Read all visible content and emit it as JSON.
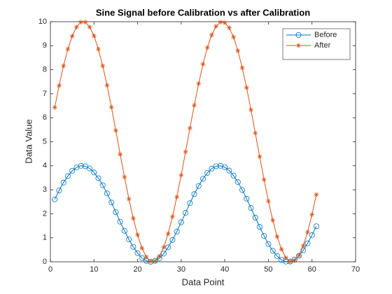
{
  "chart_data": {
    "type": "line",
    "title": "Sine Signal before Calibration vs after Calibration",
    "xlabel": "Data Point",
    "ylabel": "Data Value",
    "x": [
      1,
      2,
      3,
      4,
      5,
      6,
      7,
      8,
      9,
      10,
      11,
      12,
      13,
      14,
      15,
      16,
      17,
      18,
      19,
      20,
      21,
      22,
      23,
      24,
      25,
      26,
      27,
      28,
      29,
      30,
      31,
      32,
      33,
      34,
      35,
      36,
      37,
      38,
      39,
      40,
      41,
      42,
      43,
      44,
      45,
      46,
      47,
      48,
      49,
      50,
      51,
      52,
      53,
      54,
      55,
      56,
      57,
      58,
      59,
      60,
      61
    ],
    "series": [
      {
        "name": "Before",
        "color": "#0072BD",
        "marker": "o",
        "values": [
          2.6,
          2.97,
          3.3,
          3.57,
          3.79,
          3.93,
          4.0,
          3.98,
          3.89,
          3.72,
          3.48,
          3.19,
          2.85,
          2.47,
          2.07,
          1.67,
          1.29,
          0.93,
          0.62,
          0.36,
          0.16,
          0.04,
          0.0,
          0.04,
          0.15,
          0.34,
          0.6,
          0.91,
          1.26,
          1.65,
          2.04,
          2.44,
          2.82,
          3.16,
          3.46,
          3.7,
          3.88,
          3.98,
          4.0,
          3.94,
          3.8,
          3.59,
          3.32,
          2.99,
          2.63,
          2.24,
          1.84,
          1.45,
          1.08,
          0.74,
          0.46,
          0.24,
          0.08,
          0.01,
          0.01,
          0.09,
          0.25,
          0.48,
          0.77,
          1.11,
          1.48
        ]
      },
      {
        "name": "After",
        "color": "#D95319",
        "marker": "*",
        "values": [
          6.43,
          7.34,
          8.16,
          8.86,
          9.4,
          9.78,
          9.98,
          9.98,
          9.78,
          9.41,
          8.86,
          8.16,
          7.35,
          6.44,
          5.47,
          4.48,
          3.53,
          2.62,
          1.81,
          1.12,
          0.57,
          0.2,
          0.02,
          0.03,
          0.23,
          0.61,
          1.17,
          1.88,
          2.7,
          3.61,
          4.58,
          5.57,
          6.52,
          7.42,
          8.23,
          8.92,
          9.45,
          9.81,
          9.98,
          9.96,
          9.75,
          9.36,
          8.79,
          8.08,
          7.25,
          6.33,
          5.36,
          4.38,
          3.42,
          2.53,
          1.73,
          1.05,
          0.52,
          0.17,
          0.01,
          0.05,
          0.26,
          0.67,
          1.24,
          1.97,
          2.8
        ]
      }
    ],
    "xlim": [
      0,
      70
    ],
    "xticks": [
      0,
      10,
      20,
      30,
      40,
      50,
      60,
      70
    ],
    "ylim": [
      0,
      10
    ],
    "yticks": [
      0,
      1,
      2,
      3,
      4,
      5,
      6,
      7,
      8,
      9,
      10
    ],
    "grid": false,
    "legend": "northeast"
  }
}
